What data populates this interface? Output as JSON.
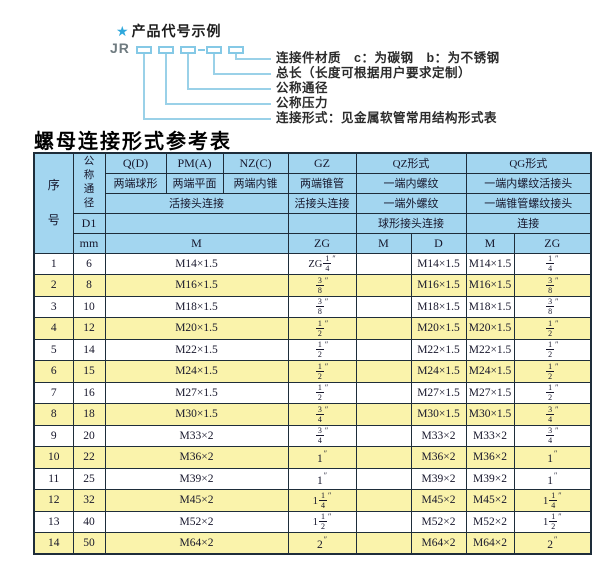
{
  "diagram": {
    "star": "★",
    "heading": "产品代号示例",
    "code_prefix": "JR",
    "labels": [
      "连接件材质　c：为碳钢　b：为不锈钢",
      "总长（长度可根据用户要求定制）",
      "公称通径",
      "公称压力",
      "连接形式：见金属软管常用结构形式表"
    ]
  },
  "table": {
    "title": "螺母连接形式参考表",
    "header": {
      "seq": "序号",
      "dn": "公称通径",
      "d1": "D1",
      "mm": "mm",
      "q": "Q(D)",
      "q_sub": "两端球形",
      "pm": "PM(A)",
      "pm_sub": "两端平面",
      "nz": "NZ(C)",
      "nz_sub": "两端内锥",
      "union_conn": "活接头连接",
      "gz": "GZ",
      "gz_sub": "两端锥管",
      "gz_conn": "活接头连接",
      "qz": "QZ形式",
      "qz_sub1": "一端内螺纹",
      "qz_sub2": "一端外螺纹",
      "qz_conn": "球形接头连接",
      "qg": "QG形式",
      "qg_sub1": "一端内螺纹活接头",
      "qg_sub2": "一端锥管螺纹接头",
      "qg_conn": "连接",
      "u_m": "M",
      "u_zg": "ZG",
      "u_qz_m": "M",
      "u_qz_d": "D",
      "u_qg_m": "M",
      "u_qg_zg": "ZG"
    },
    "rows": [
      {
        "seq": "1",
        "mm": "6",
        "m": "M14×1.5",
        "gz": "ZG 1/4",
        "qz_m": "",
        "qz_d": "M14×1.5",
        "qg_m": "M14×1.5",
        "qg_zg": "1/4"
      },
      {
        "seq": "2",
        "mm": "8",
        "m": "M16×1.5",
        "gz": "3/8",
        "qz_m": "",
        "qz_d": "M16×1.5",
        "qg_m": "M16×1.5",
        "qg_zg": "3/8"
      },
      {
        "seq": "3",
        "mm": "10",
        "m": "M18×1.5",
        "gz": "3/8",
        "qz_m": "",
        "qz_d": "M18×1.5",
        "qg_m": "M18×1.5",
        "qg_zg": "3/8"
      },
      {
        "seq": "4",
        "mm": "12",
        "m": "M20×1.5",
        "gz": "1/2",
        "qz_m": "",
        "qz_d": "M20×1.5",
        "qg_m": "M20×1.5",
        "qg_zg": "1/2"
      },
      {
        "seq": "5",
        "mm": "14",
        "m": "M22×1.5",
        "gz": "1/2",
        "qz_m": "",
        "qz_d": "M22×1.5",
        "qg_m": "M22×1.5",
        "qg_zg": "1/2"
      },
      {
        "seq": "6",
        "mm": "15",
        "m": "M24×1.5",
        "gz": "1/2",
        "qz_m": "",
        "qz_d": "M24×1.5",
        "qg_m": "M24×1.5",
        "qg_zg": "1/2"
      },
      {
        "seq": "7",
        "mm": "16",
        "m": "M27×1.5",
        "gz": "1/2",
        "qz_m": "",
        "qz_d": "M27×1.5",
        "qg_m": "M27×1.5",
        "qg_zg": "1/2"
      },
      {
        "seq": "8",
        "mm": "18",
        "m": "M30×1.5",
        "gz": "3/4",
        "qz_m": "",
        "qz_d": "M30×1.5",
        "qg_m": "M30×1.5",
        "qg_zg": "3/4"
      },
      {
        "seq": "9",
        "mm": "20",
        "m": "M33×2",
        "gz": "3/4",
        "qz_m": "",
        "qz_d": "M33×2",
        "qg_m": "M33×2",
        "qg_zg": "3/4"
      },
      {
        "seq": "10",
        "mm": "22",
        "m": "M36×2",
        "gz": "1",
        "qz_m": "",
        "qz_d": "M36×2",
        "qg_m": "M36×2",
        "qg_zg": "1"
      },
      {
        "seq": "11",
        "mm": "25",
        "m": "M39×2",
        "gz": "1",
        "qz_m": "",
        "qz_d": "M39×2",
        "qg_m": "M39×2",
        "qg_zg": "1"
      },
      {
        "seq": "12",
        "mm": "32",
        "m": "M45×2",
        "gz": "1 1/4",
        "qz_m": "",
        "qz_d": "M45×2",
        "qg_m": "M45×2",
        "qg_zg": "1 1/4"
      },
      {
        "seq": "13",
        "mm": "40",
        "m": "M52×2",
        "gz": "1 1/2",
        "qz_m": "",
        "qz_d": "M52×2",
        "qg_m": "M52×2",
        "qg_zg": "1 1/2"
      },
      {
        "seq": "14",
        "mm": "50",
        "m": "M64×2",
        "gz": "2",
        "qz_m": "",
        "qz_d": "M64×2",
        "qg_m": "M64×2",
        "qg_zg": "2"
      }
    ]
  },
  "colors": {
    "header_bg": "#A3D6F0",
    "row_alt_bg": "#FAF3AB",
    "border": "#1E2D3A",
    "diagram_blue": "#85C9E6",
    "star_blue": "#2FA8DC"
  }
}
